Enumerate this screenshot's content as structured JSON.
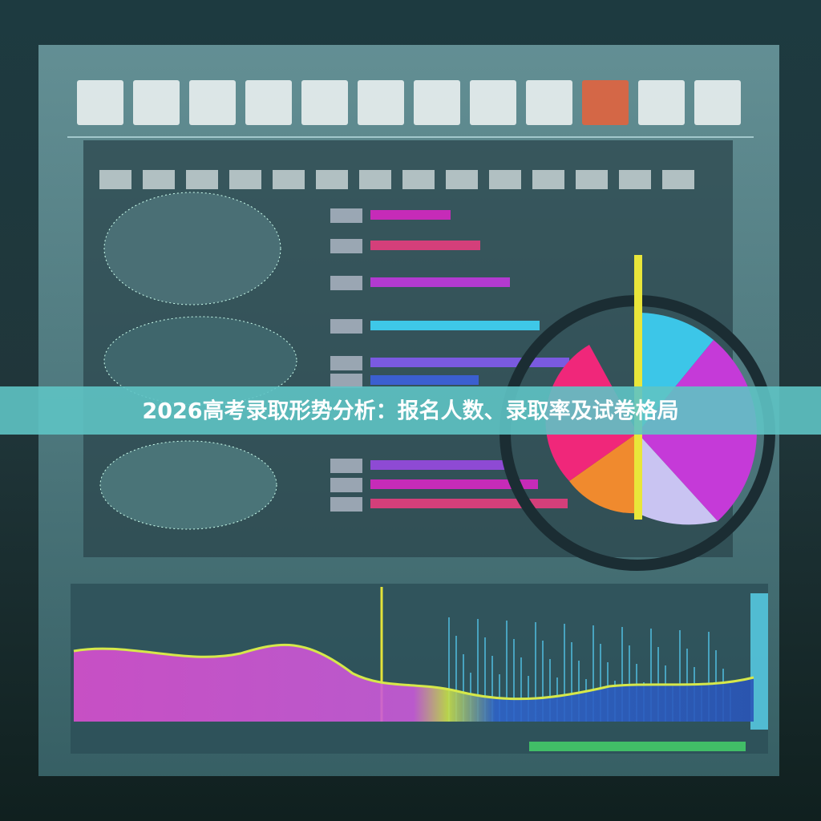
{
  "banner": {
    "title": "2026高考录取形势分析：报名人数、录取率及试卷格局"
  }
}
